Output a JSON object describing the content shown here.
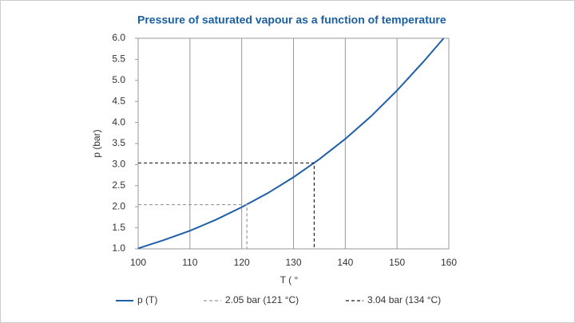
{
  "chart_data": {
    "type": "line",
    "title": "Pressure of saturated vapour as a function of temperature",
    "x_label": "T ( °",
    "y_label": "p (bar)",
    "xlim": [
      100,
      160
    ],
    "xticks": [
      100,
      110,
      120,
      130,
      140,
      150,
      160
    ],
    "ylim": [
      1,
      6
    ],
    "yticks": [
      {
        "value": 1,
        "label": "1.0"
      },
      1.5,
      {
        "value": 2,
        "label": "2.0"
      },
      2.5,
      {
        "value": 3,
        "label": "3.0"
      },
      3.5,
      {
        "value": 4,
        "label": "4.0"
      },
      4.5,
      {
        "value": 5,
        "label": "5.0"
      },
      5.5,
      {
        "value": 6,
        "label": "6.0"
      }
    ],
    "grid": true,
    "legend": "bottom",
    "series": [
      {
        "name": "p (T)",
        "color": "#1f5fa6",
        "dashed": false,
        "x": [
          100,
          105,
          110,
          115,
          120,
          125,
          130,
          135,
          140,
          145,
          150,
          155,
          159
        ],
        "values": [
          1.01,
          1.21,
          1.43,
          1.69,
          1.99,
          2.32,
          2.7,
          3.13,
          3.61,
          4.15,
          4.76,
          5.43,
          6.0
        ]
      },
      {
        "name": "2.05 bar (121 °C)",
        "color": "#999999",
        "dashed": true,
        "x": [
          100,
          121,
          121
        ],
        "values": [
          2.05,
          2.05,
          1.0
        ]
      },
      {
        "name": "3.04 bar (134 °C)",
        "color": "#222222",
        "dashed": true,
        "x": [
          100,
          134,
          134
        ],
        "values": [
          3.04,
          3.04,
          1.0
        ]
      }
    ]
  }
}
